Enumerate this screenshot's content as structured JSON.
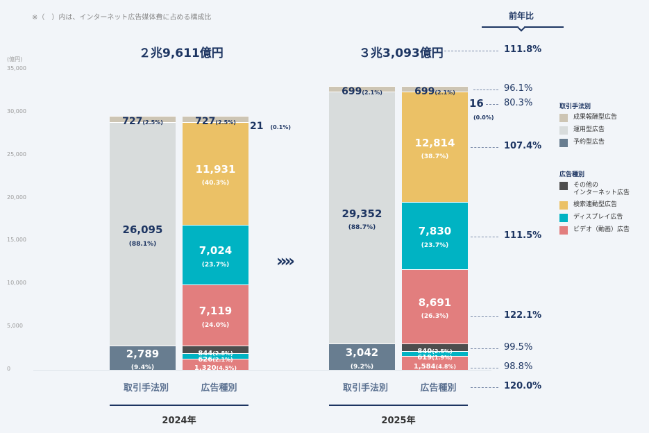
{
  "note": "※（　）内は、インターネット広告媒体費に占める構成比",
  "chart_data": {
    "type": "stacked-bar",
    "unit_label": "(億円)",
    "ylim": [
      0,
      35000
    ],
    "yticks": [
      "0",
      "5,000",
      "10,000",
      "15,000",
      "20,000",
      "25,000",
      "30,000",
      "35,000"
    ],
    "yoy_header": "前年比",
    "arrow": "»»",
    "colors": {
      "performance": "#cdc5b4",
      "operational": "#d8dcdc",
      "reserved": "#687d90",
      "other": "#4d4d4d",
      "search": "#ebc166",
      "display": "#00b3c3",
      "video": "#e27e7e"
    },
    "legend": {
      "method_title": "取引手法別",
      "method": [
        {
          "key": "performance",
          "label": "成果報酬型広告"
        },
        {
          "key": "operational",
          "label": "運用型広告"
        },
        {
          "key": "reserved",
          "label": "予約型広告"
        }
      ],
      "type_title": "広告種別",
      "type": [
        {
          "key": "other",
          "label": "その他の\nインターネット広告"
        },
        {
          "key": "search",
          "label": "検索連動型広告"
        },
        {
          "key": "display",
          "label": "ディスプレイ広告"
        },
        {
          "key": "video",
          "label": "ビデオ（動画）広告"
        }
      ]
    },
    "years": [
      {
        "year": "2024年",
        "total": "２兆9,611億円",
        "bars": [
          {
            "category": "取引手法別",
            "segments": [
              {
                "key": "reserved",
                "value": 2789,
                "label": "2,789",
                "pct": "(9.4%)"
              },
              {
                "key": "operational",
                "value": 26095,
                "label": "26,095",
                "pct": "(88.1%)"
              },
              {
                "key": "performance",
                "value": 727,
                "label": "727",
                "pct": "(2.5%)"
              }
            ]
          },
          {
            "category": "広告種別",
            "segments": [
              {
                "key": "video",
                "value": 1320,
                "label": "1,320",
                "pct": "(4.5%)"
              },
              {
                "key": "display",
                "value": 626,
                "label": "626",
                "pct": "(2.1%)"
              },
              {
                "key": "other",
                "value": 844,
                "label": "844",
                "pct": "(2.8%)"
              },
              {
                "key": "video",
                "value": 7119,
                "label": "7,119",
                "pct": "(24.0%)"
              },
              {
                "key": "display",
                "value": 7024,
                "label": "7,024",
                "pct": "(23.7%)"
              },
              {
                "key": "search",
                "value": 11931,
                "label": "11,931",
                "pct": "(40.3%)"
              },
              {
                "key": "other",
                "value": 21,
                "label": "21",
                "pct": "(0.1%)"
              },
              {
                "key": "performance",
                "value": 727,
                "label": "727",
                "pct": "(2.5%)"
              }
            ]
          }
        ]
      },
      {
        "year": "2025年",
        "total": "３兆3,093億円",
        "bars": [
          {
            "category": "取引手法別",
            "segments": [
              {
                "key": "reserved",
                "value": 3042,
                "label": "3,042",
                "pct": "(9.2%)"
              },
              {
                "key": "operational",
                "value": 29352,
                "label": "29,352",
                "pct": "(88.7%)"
              },
              {
                "key": "performance",
                "value": 699,
                "label": "699",
                "pct": "(2.1%)"
              }
            ]
          },
          {
            "category": "広告種別",
            "segments": [
              {
                "key": "video",
                "value": 1584,
                "label": "1,584",
                "pct": "(4.8%)"
              },
              {
                "key": "display",
                "value": 619,
                "label": "619",
                "pct": "(1.9%)"
              },
              {
                "key": "other",
                "value": 840,
                "label": "840",
                "pct": "(2.5%)"
              },
              {
                "key": "video",
                "value": 8691,
                "label": "8,691",
                "pct": "(26.3%)"
              },
              {
                "key": "display",
                "value": 7830,
                "label": "7,830",
                "pct": "(23.7%)"
              },
              {
                "key": "search",
                "value": 12814,
                "label": "12,814",
                "pct": "(38.7%)"
              },
              {
                "key": "other",
                "value": 16,
                "label": "16",
                "pct": "(0.0%)"
              },
              {
                "key": "performance",
                "value": 699,
                "label": "699",
                "pct": "(2.1%)"
              }
            ]
          }
        ]
      }
    ],
    "yoy": [
      {
        "target": "total",
        "value": "111.8%"
      },
      {
        "target": "performance",
        "value": "96.1%"
      },
      {
        "target": "other (top)",
        "value": "80.3%"
      },
      {
        "target": "search",
        "value": "107.4%"
      },
      {
        "target": "display",
        "value": "111.5%"
      },
      {
        "target": "video",
        "value": "122.1%"
      },
      {
        "target": "other (bottom)",
        "value": "99.5%"
      },
      {
        "target": "display (bottom)",
        "value": "98.8%"
      },
      {
        "target": "video (bottom)",
        "value": "120.0%"
      }
    ]
  }
}
